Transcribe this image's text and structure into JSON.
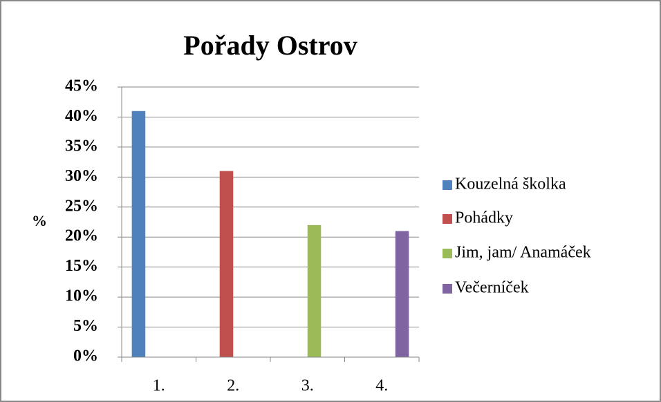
{
  "chart_data": {
    "type": "bar",
    "title": "Pořady Ostrov",
    "y_label": "%",
    "categories": [
      "1.",
      "2.",
      "3.",
      "4."
    ],
    "series": [
      {
        "name": "Kouzelná školka",
        "color": "#4f81bd",
        "values": [
          41,
          null,
          null,
          null
        ]
      },
      {
        "name": "Pohádky",
        "color": "#c0504d",
        "values": [
          null,
          31,
          null,
          null
        ]
      },
      {
        "name": "Jim, jam/ Anamáček",
        "color": "#9bbb59",
        "values": [
          null,
          null,
          22,
          null
        ]
      },
      {
        "name": "Večerníček",
        "color": "#8064a2",
        "values": [
          null,
          null,
          null,
          21
        ]
      }
    ],
    "ylim": [
      0,
      45
    ],
    "yticks": [
      {
        "value": 0,
        "label": "0%"
      },
      {
        "value": 5,
        "label": "5%"
      },
      {
        "value": 10,
        "label": "10%"
      },
      {
        "value": 15,
        "label": "15%"
      },
      {
        "value": 20,
        "label": "20%"
      },
      {
        "value": 25,
        "label": "25%"
      },
      {
        "value": 30,
        "label": "30%"
      },
      {
        "value": 35,
        "label": "35%"
      },
      {
        "value": 40,
        "label": "40%"
      },
      {
        "value": 45,
        "label": "45%"
      }
    ],
    "grid": true,
    "legend": "right"
  }
}
